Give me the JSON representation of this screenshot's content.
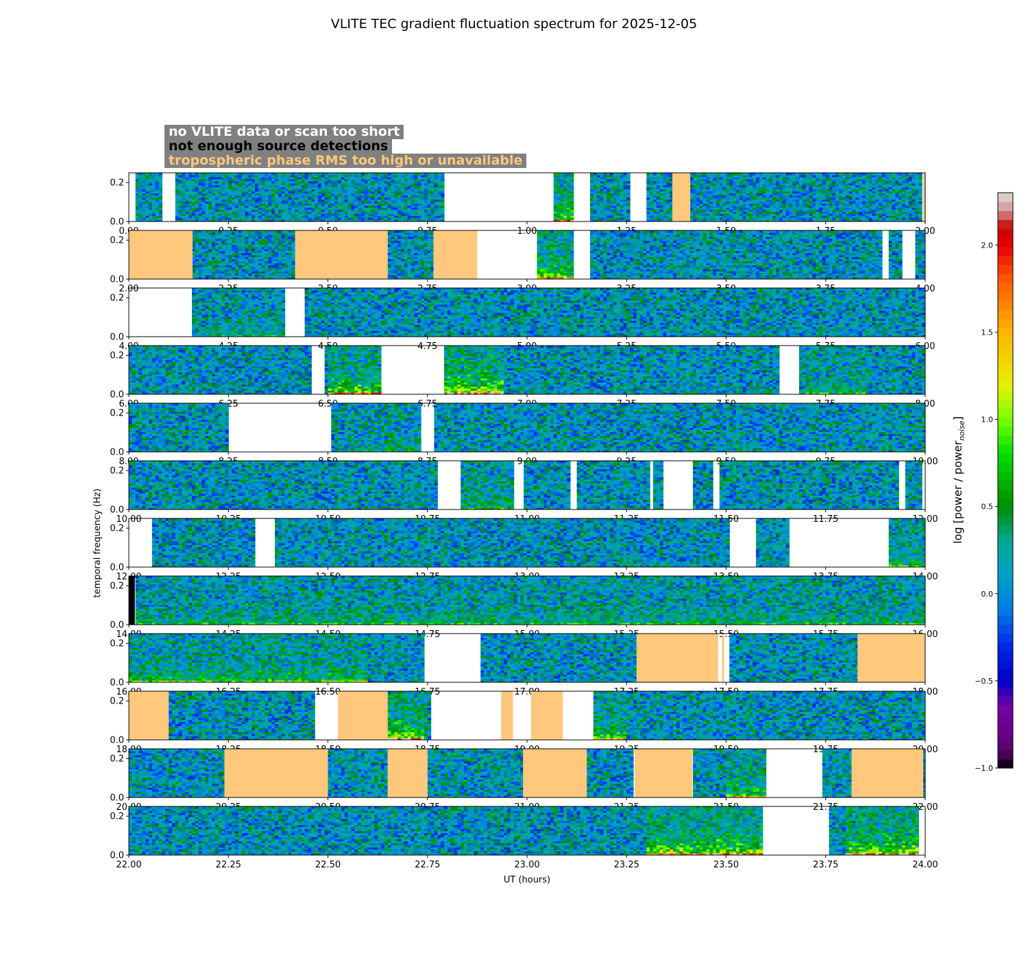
{
  "chart_data": {
    "type": "heatmap",
    "title": "VLITE TEC gradient fluctuation spectrum for 2025-12-05",
    "xlabel": "UT (hours)",
    "ylabel": "temporal frequency (Hz)",
    "colorbar_label": "log [power / power",
    "colorbar_subscript": "noise",
    "colorbar_suffix": "]",
    "colorbar_range": [
      -1.0,
      2.3
    ],
    "colorbar_ticks": [
      "−1.0",
      "−0.5",
      "0.0",
      "0.5",
      "1.0",
      "1.5",
      "2.0"
    ],
    "colorbar_tick_values": [
      -1.0,
      -0.5,
      0.0,
      0.5,
      1.0,
      1.5,
      2.0
    ],
    "ylim": [
      0.0,
      0.25
    ],
    "yticks": [
      "0.0",
      "0.2"
    ],
    "ytick_values": [
      0.0,
      0.2
    ],
    "colors": {
      "no_data": "#ffffff",
      "not_enough_detections": "#000000",
      "tropo_rms": "#ffc87c",
      "legend_bg": "#808080"
    },
    "legend": [
      {
        "label": "no VLITE data or scan too short",
        "color": "#ffffff"
      },
      {
        "label": "not enough source detections",
        "color": "#000000"
      },
      {
        "label": "tropospheric phase RMS too high or unavailable",
        "color": "#ffc87c"
      }
    ],
    "panels": [
      {
        "xlim": [
          0,
          2
        ],
        "xticks": [
          "0.00",
          "0.25",
          "0.50",
          "0.75",
          "1.00",
          "1.25",
          "1.50",
          "1.75",
          "2.00"
        ],
        "gaps": [
          [
            0.0,
            0.015
          ],
          [
            0.08,
            0.115
          ],
          [
            0.79,
            1.065
          ],
          [
            1.12,
            1.155
          ],
          [
            1.255,
            1.3
          ],
          [
            1.355,
            1.36
          ]
        ],
        "tropo": [
          [
            1.365,
            1.41
          ],
          [
            1.995,
            2.0
          ]
        ],
        "nodet": [],
        "activity": [
          [
            1.065,
            1.12,
            0.7
          ]
        ]
      },
      {
        "xlim": [
          2,
          4
        ],
        "xticks": [
          "2.00",
          "2.25",
          "2.50",
          "2.75",
          "3.00",
          "3.25",
          "3.50",
          "3.75",
          "4.00"
        ],
        "gaps": [
          [
            2.875,
            3.025
          ],
          [
            3.12,
            3.155
          ],
          [
            3.895,
            3.91
          ],
          [
            3.945,
            3.975
          ]
        ],
        "tropo": [
          [
            2.0,
            2.16
          ],
          [
            2.418,
            2.65
          ],
          [
            2.765,
            2.875
          ]
        ],
        "nodet": [],
        "activity": [
          [
            3.025,
            3.12,
            0.8
          ]
        ]
      },
      {
        "xlim": [
          4,
          6
        ],
        "xticks": [
          "4.00",
          "4.25",
          "4.50",
          "4.75",
          "5.00",
          "5.25",
          "5.50",
          "5.75",
          "6.00"
        ],
        "gaps": [
          [
            4.0,
            4.16
          ],
          [
            4.39,
            4.445
          ]
        ],
        "tropo": [],
        "nodet": [],
        "activity": [
          [
            4.2,
            4.39,
            0.2
          ]
        ]
      },
      {
        "xlim": [
          6,
          8
        ],
        "xticks": [
          "6.00",
          "6.25",
          "6.50",
          "6.75",
          "7.00",
          "7.25",
          "7.50",
          "7.75",
          "8.00"
        ],
        "gaps": [
          [
            6.455,
            6.49
          ],
          [
            6.63,
            6.79
          ],
          [
            6.94,
            6.945
          ],
          [
            7.63,
            7.685
          ]
        ],
        "tropo": [],
        "nodet": [],
        "activity": [
          [
            6.5,
            6.63,
            0.8
          ],
          [
            6.79,
            6.94,
            1.0
          ],
          [
            7.7,
            7.85,
            0.3
          ]
        ]
      },
      {
        "xlim": [
          8,
          10
        ],
        "xticks": [
          "8.00",
          "8.25",
          "8.50",
          "8.75",
          "9.00",
          "9.25",
          "9.50",
          "9.75",
          "10.00"
        ],
        "gaps": [
          [
            8.25,
            8.51
          ],
          [
            8.73,
            8.765
          ]
        ],
        "tropo": [],
        "nodet": [],
        "activity": [
          [
            8.55,
            8.73,
            0.2
          ]
        ]
      },
      {
        "xlim": [
          10,
          12
        ],
        "xticks": [
          "10.00",
          "10.25",
          "10.50",
          "10.75",
          "11.00",
          "11.25",
          "11.50",
          "11.75",
          "12.00"
        ],
        "gaps": [
          [
            10.775,
            10.83
          ],
          [
            10.97,
            10.995
          ],
          [
            11.105,
            11.125
          ],
          [
            11.31,
            11.32
          ],
          [
            11.34,
            11.42
          ],
          [
            11.465,
            11.48
          ],
          [
            11.935,
            11.95
          ],
          [
            11.995,
            12.0
          ]
        ],
        "tropo": [],
        "nodet": [],
        "activity": [
          [
            10.83,
            10.97,
            0.3
          ]
        ]
      },
      {
        "xlim": [
          12,
          14
        ],
        "xticks": [
          "12.00",
          "12.25",
          "12.50",
          "12.75",
          "13.00",
          "13.25",
          "13.50",
          "13.75",
          "14.00"
        ],
        "gaps": [
          [
            12.0,
            12.055
          ],
          [
            12.32,
            12.365
          ],
          [
            13.505,
            13.575
          ],
          [
            13.655,
            13.91
          ]
        ],
        "tropo": [],
        "nodet": [],
        "activity": [
          [
            13.91,
            14.0,
            0.3
          ]
        ]
      },
      {
        "xlim": [
          14,
          16
        ],
        "xticks": [
          "14.00",
          "14.25",
          "14.50",
          "14.75",
          "15.00",
          "15.25",
          "15.50",
          "15.75",
          "16.00"
        ],
        "gaps": [],
        "tropo": [],
        "nodet": [
          [
            14.0,
            14.015
          ]
        ],
        "activity": [
          [
            14.0,
            16.0,
            0.25
          ]
        ]
      },
      {
        "xlim": [
          16,
          18
        ],
        "xticks": [
          "16.00",
          "16.25",
          "16.50",
          "16.75",
          "17.00",
          "17.25",
          "17.50",
          "17.75",
          "18.00"
        ],
        "gaps": [
          [
            16.745,
            16.88
          ],
          [
            17.48,
            17.49
          ],
          [
            17.495,
            17.505
          ]
        ],
        "tropo": [
          [
            17.275,
            17.48
          ],
          [
            17.49,
            17.495
          ],
          [
            17.83,
            18.0
          ]
        ],
        "nodet": [],
        "activity": [
          [
            16.0,
            16.6,
            0.4
          ]
        ]
      },
      {
        "xlim": [
          18,
          20
        ],
        "xticks": [
          "18.00",
          "18.25",
          "18.50",
          "18.75",
          "19.00",
          "19.25",
          "19.50",
          "19.75",
          "20.00"
        ],
        "gaps": [
          [
            18.465,
            18.525
          ],
          [
            18.755,
            18.935
          ],
          [
            18.965,
            19.01
          ],
          [
            19.09,
            19.17
          ]
        ],
        "tropo": [
          [
            18.0,
            18.1
          ],
          [
            18.525,
            18.65
          ],
          [
            18.935,
            18.965
          ],
          [
            19.01,
            19.09
          ]
        ],
        "nodet": [],
        "activity": [
          [
            18.65,
            18.745,
            1.0
          ],
          [
            19.17,
            19.25,
            0.6
          ]
        ]
      },
      {
        "xlim": [
          20,
          22
        ],
        "xticks": [
          "20.00",
          "20.25",
          "20.50",
          "20.75",
          "21.00",
          "21.25",
          "21.50",
          "21.75",
          "22.00"
        ],
        "gaps": [
          [
            21.6,
            21.745
          ]
        ],
        "tropo": [
          [
            20.24,
            20.5
          ],
          [
            20.65,
            20.75
          ],
          [
            20.99,
            21.15
          ],
          [
            21.27,
            21.415
          ],
          [
            21.815,
            21.995
          ]
        ],
        "nodet": [],
        "activity": [
          [
            21.5,
            21.6,
            0.6
          ]
        ]
      },
      {
        "xlim": [
          22,
          24
        ],
        "xticks": [
          "22.00",
          "22.25",
          "22.50",
          "22.75",
          "23.00",
          "23.25",
          "23.50",
          "23.75",
          "24.00"
        ],
        "gaps": [
          [
            23.59,
            23.755
          ],
          [
            23.985,
            24.0
          ]
        ],
        "tropo": [],
        "nodet": [],
        "activity": [
          [
            23.3,
            23.59,
            0.9
          ],
          [
            23.8,
            23.985,
            1.0
          ]
        ]
      }
    ]
  }
}
